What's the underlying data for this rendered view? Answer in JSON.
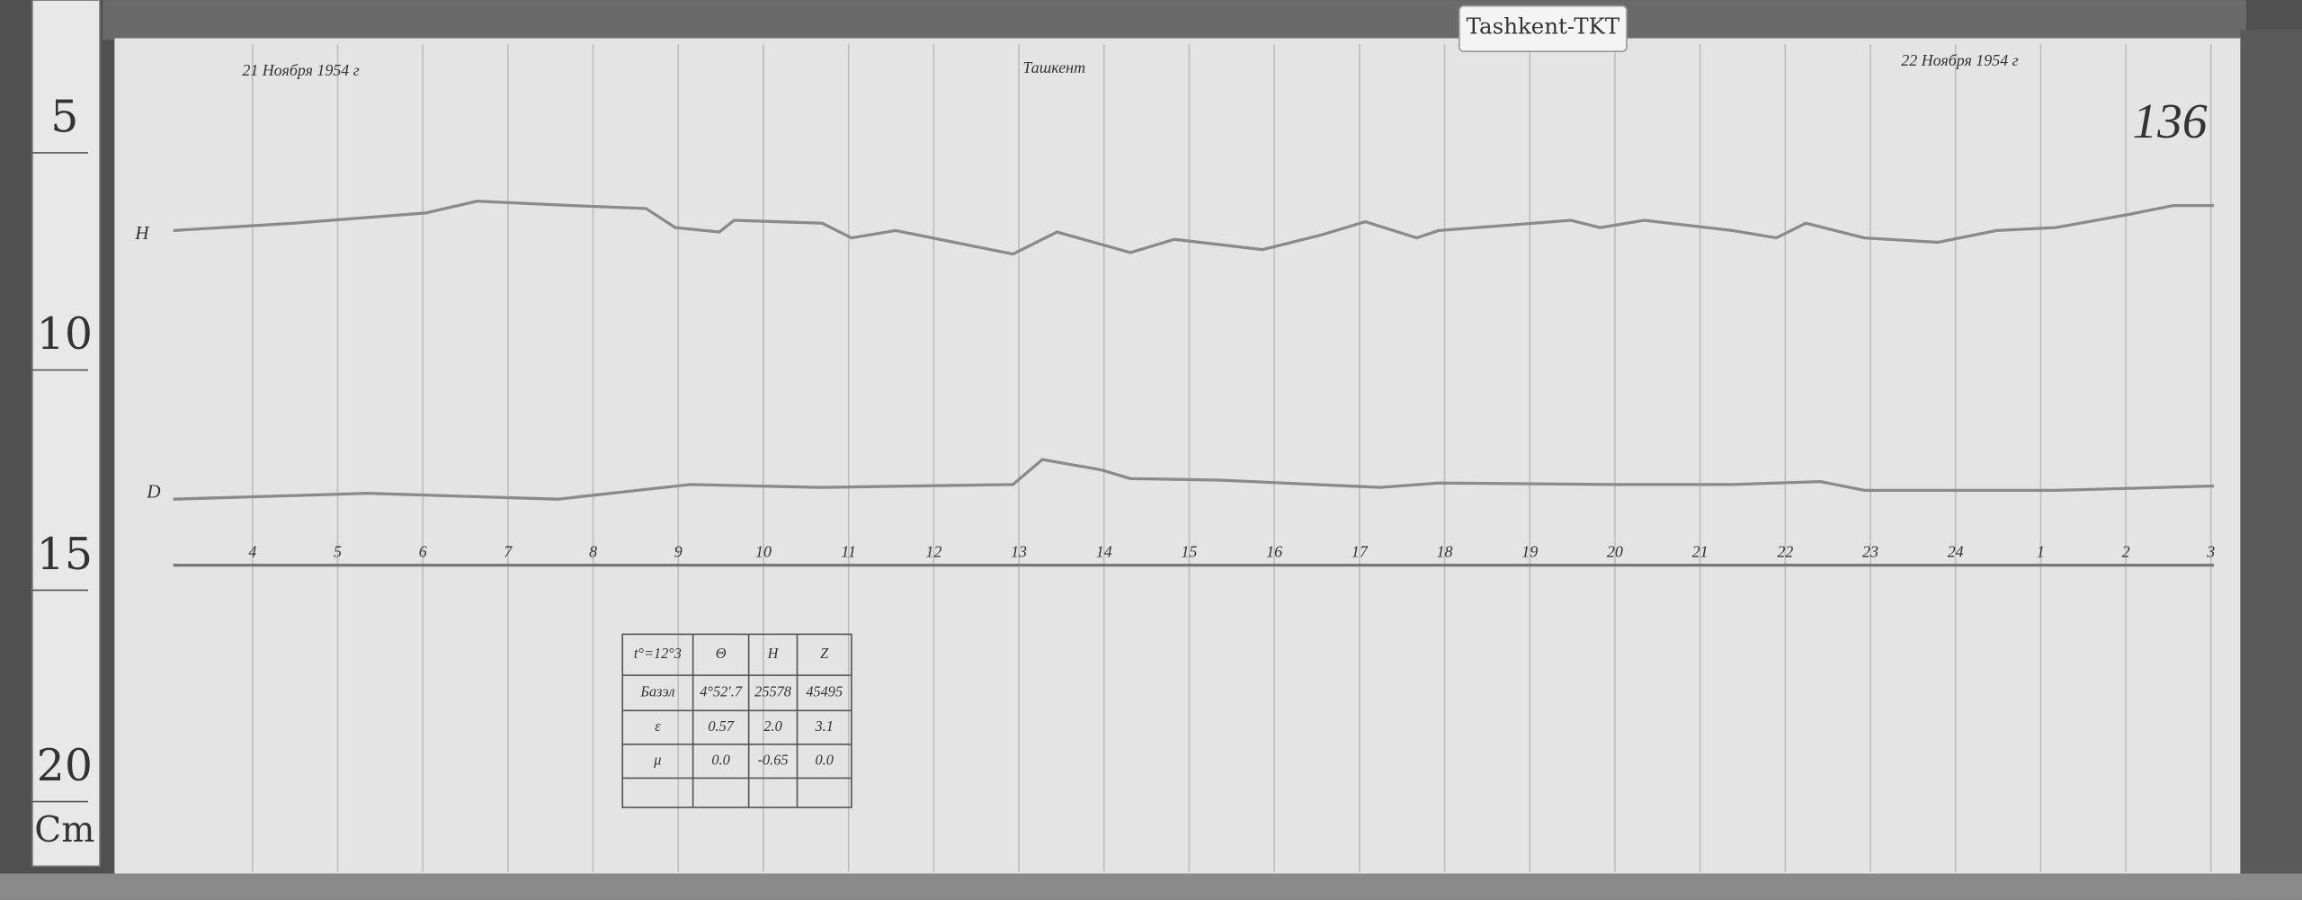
{
  "ruler": {
    "marks": [
      "5",
      "10",
      "15",
      "20"
    ],
    "unit": "Cm"
  },
  "label": "Tashkent-TKT",
  "sheet_number": "136",
  "header": {
    "start_date": "21 Ноября 1954 г",
    "station": "Ташкент",
    "end_date": "22 Ноября 1954 г"
  },
  "traces": [
    {
      "label": "H"
    },
    {
      "label": "D"
    }
  ],
  "hours": [
    "4",
    "5",
    "6",
    "7",
    "8",
    "9",
    "10",
    "11",
    "12",
    "13",
    "14",
    "15",
    "16",
    "17",
    "18",
    "19",
    "20",
    "21",
    "22",
    "23",
    "24",
    "1",
    "2",
    "3"
  ],
  "table": {
    "header": [
      "t°=12°3",
      "Θ",
      "H",
      "Z"
    ],
    "rows": [
      [
        "Базэл",
        "4°52'.7",
        "25578",
        "45495"
      ],
      [
        "ε",
        "0.57",
        "2.0",
        "3.1"
      ],
      [
        "μ",
        "0.0",
        "-0.65",
        "0.0"
      ]
    ]
  }
}
